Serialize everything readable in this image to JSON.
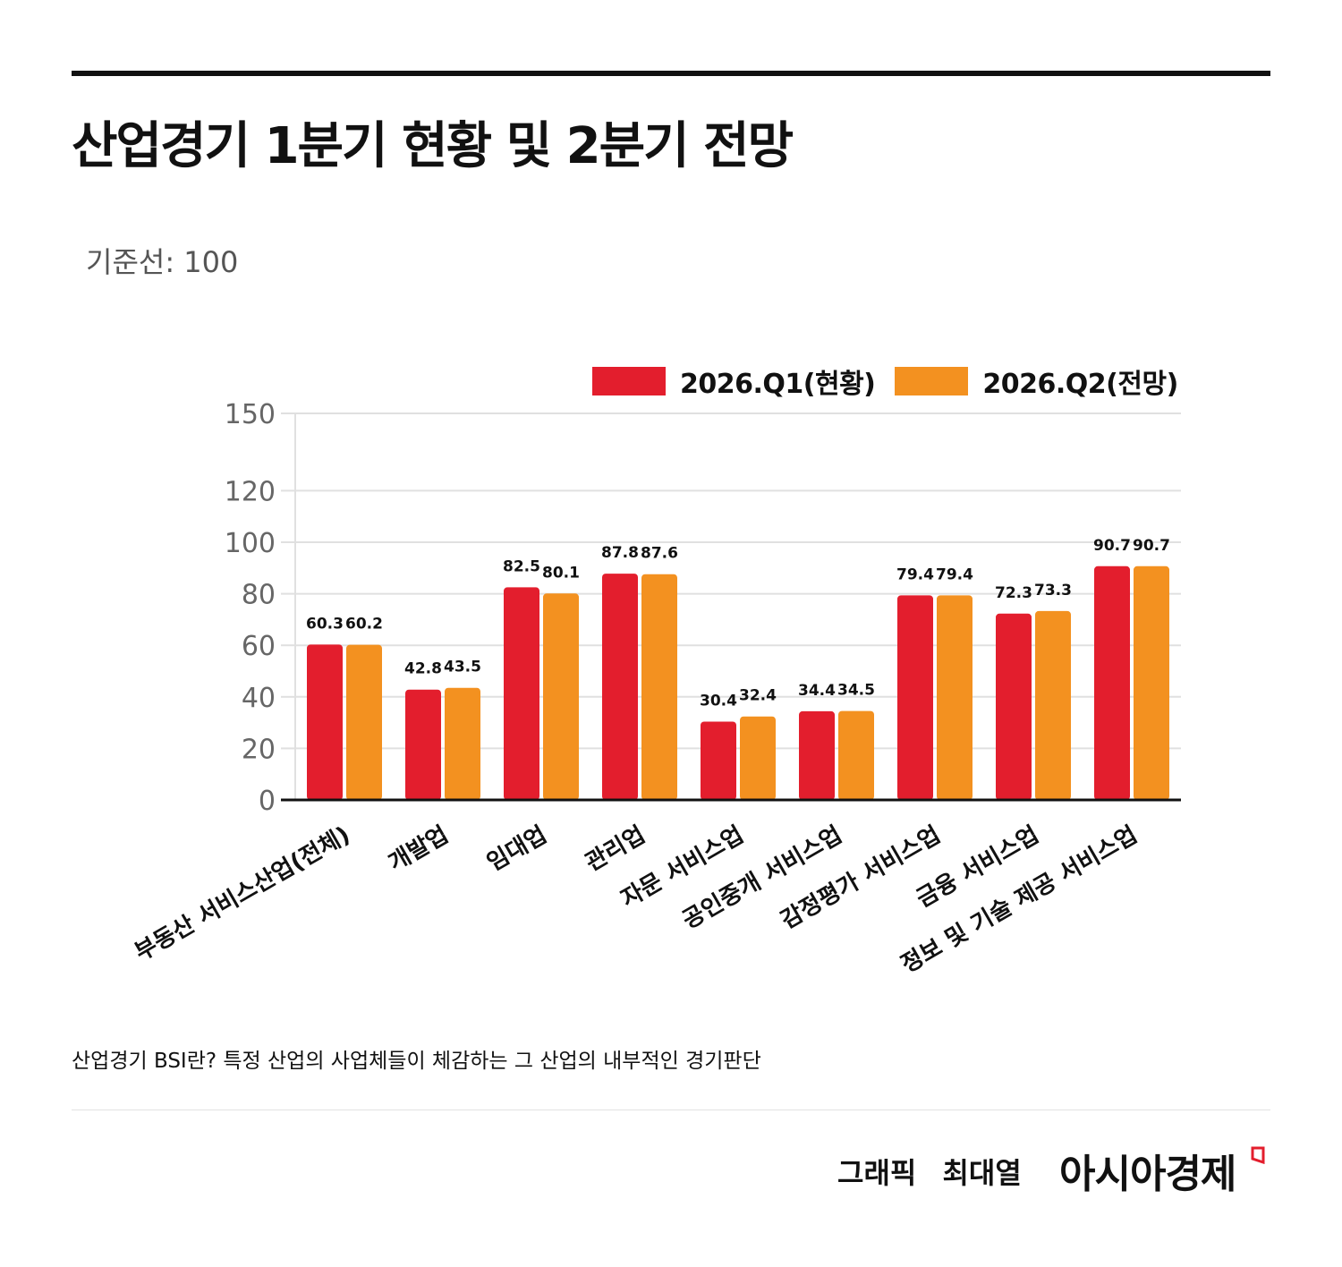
{
  "header": {
    "title": "산업경기 1분기 현황 및 2분기 전망",
    "subtitle": "기준선: 100"
  },
  "colors": {
    "q1": "#e31e2d",
    "q2": "#f39120",
    "grid": "#e0e0e0",
    "axis": "#111111"
  },
  "chart_data": {
    "type": "bar",
    "categories": [
      "부동산 서비스산업(전체)",
      "개발업",
      "임대업",
      "관리업",
      "자문 서비스업",
      "공인중개 서비스업",
      "감정평가 서비스업",
      "금융 서비스업",
      "정보 및 기술 제공 서비스업"
    ],
    "series": [
      {
        "name": "2026.Q1(현황)",
        "values": [
          60.3,
          42.8,
          82.5,
          87.8,
          30.4,
          34.4,
          79.4,
          72.3,
          90.7
        ]
      },
      {
        "name": "2026.Q2(전망)",
        "values": [
          60.2,
          43.5,
          80.1,
          87.6,
          32.4,
          34.5,
          79.4,
          73.3,
          90.7
        ]
      }
    ],
    "y_ticks": [
      0,
      20,
      40,
      60,
      80,
      100,
      120,
      150
    ],
    "ylim": [
      0,
      150
    ],
    "grid": true,
    "legend": "top-right"
  },
  "footer": {
    "note": "산업경기 BSI란? 특정 산업의 사업체들이 체감하는 그 산업의 내부적인 경기판단",
    "credit_role": "그래픽",
    "credit_name": "최대열",
    "brand": "아시아경제"
  }
}
